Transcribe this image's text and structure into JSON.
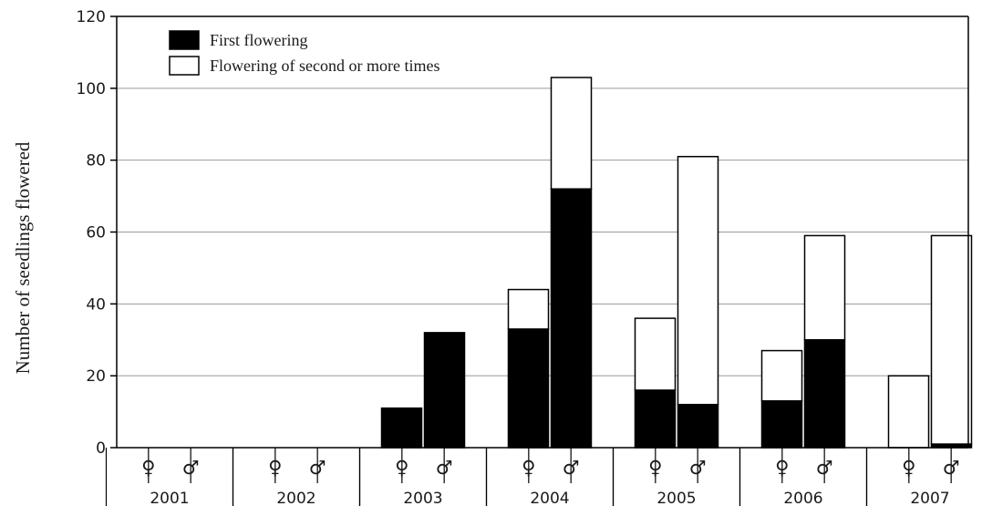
{
  "chart_data": {
    "type": "bar",
    "stacked": true,
    "ylabel": "Number of seedlings flowered",
    "ylim": [
      0,
      120
    ],
    "yticks": [
      0,
      20,
      40,
      60,
      80,
      100,
      120
    ],
    "grid": true,
    "legend_position": "top-left",
    "years": [
      "2001",
      "2002",
      "2003",
      "2004",
      "2005",
      "2006",
      "2007"
    ],
    "sexes": [
      "♀",
      "♂"
    ],
    "series": [
      {
        "name": "First flowering",
        "color": "#000000",
        "values": {
          "2001": [
            0,
            0
          ],
          "2002": [
            0,
            0
          ],
          "2003": [
            11,
            32
          ],
          "2004": [
            33,
            72
          ],
          "2005": [
            16,
            12
          ],
          "2006": [
            13,
            30
          ],
          "2007": [
            0,
            1
          ]
        }
      },
      {
        "name": "Flowering of second or more times",
        "color": "#ffffff",
        "values": {
          "2001": [
            0,
            0
          ],
          "2002": [
            0,
            0
          ],
          "2003": [
            0,
            0
          ],
          "2004": [
            11,
            31
          ],
          "2005": [
            20,
            69
          ],
          "2006": [
            14,
            29
          ],
          "2007": [
            20,
            58
          ]
        }
      }
    ]
  }
}
